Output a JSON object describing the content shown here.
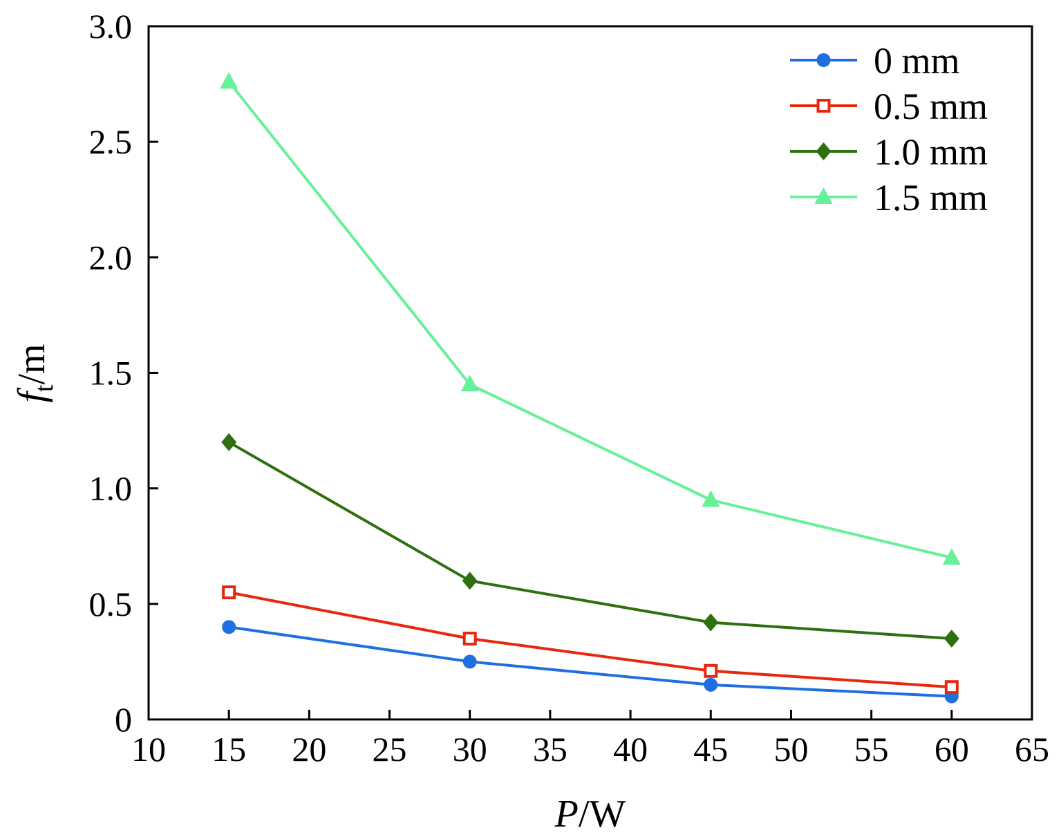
{
  "chart_data": {
    "type": "line",
    "title": "",
    "xlabel": {
      "italic": "P",
      "rest": "/W"
    },
    "ylabel": {
      "italic": "f",
      "sub": "t",
      "rest": "/m"
    },
    "xlim": [
      10,
      65
    ],
    "ylim": [
      0,
      3.0
    ],
    "xticks": [
      10,
      15,
      20,
      25,
      30,
      35,
      40,
      45,
      50,
      55,
      60,
      65
    ],
    "yticks": [
      0,
      0.5,
      1.0,
      1.5,
      2.0,
      2.5,
      3.0
    ],
    "ytick_labels": [
      "0",
      "0.5",
      "1.0",
      "1.5",
      "2.0",
      "2.5",
      "3.0"
    ],
    "x": [
      15,
      30,
      45,
      60
    ],
    "grid": false,
    "legend_position": "top-right",
    "series": [
      {
        "name": "0 mm",
        "values": [
          0.4,
          0.25,
          0.15,
          0.1
        ],
        "color": "#1f6fe0",
        "marker": "circle"
      },
      {
        "name": "0.5 mm",
        "values": [
          0.55,
          0.35,
          0.21,
          0.14
        ],
        "color": "#e8270e",
        "marker": "square"
      },
      {
        "name": "1.0 mm",
        "values": [
          1.2,
          0.6,
          0.42,
          0.35
        ],
        "color": "#2e7010",
        "marker": "diamond"
      },
      {
        "name": "1.5 mm",
        "values": [
          2.76,
          1.45,
          0.95,
          0.7
        ],
        "color": "#66f09a",
        "marker": "triangle"
      }
    ]
  }
}
